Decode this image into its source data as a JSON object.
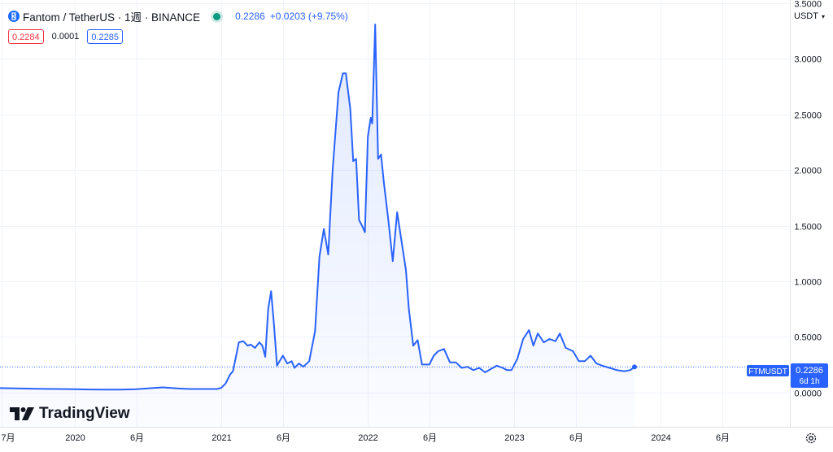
{
  "legend": {
    "symbol_title": "Fantom / TetherUS · 1週 · BINANCE",
    "last_price": "0.2286",
    "change": "+0.0203 (+9.75%)",
    "logo_icon": "fantom-logo-icon",
    "status_color": "#089981"
  },
  "trade": {
    "sell": "0.2284",
    "spread": "0.0001",
    "buy": "0.2285"
  },
  "currency": {
    "label": "USDT",
    "icon": "chevron-down-icon"
  },
  "price_tag": {
    "symbol": "FTMUSDT",
    "price": "0.2286",
    "countdown": "6d 1h"
  },
  "brand": {
    "name": "TradingView"
  },
  "colors": {
    "line": "#2962ff",
    "fill": "#2962ff",
    "grid": "#f0f3fa",
    "text": "#131722",
    "axis_text": "#131722"
  },
  "chart_data": {
    "type": "area",
    "title": "Fantom / TetherUS · 1週 · BINANCE",
    "xlabel": "",
    "ylabel": "",
    "y_ticks": [
      "0.0000",
      "0.5000",
      "1.0000",
      "1.5000",
      "2.0000",
      "2.5000",
      "3.0000",
      "3.5000"
    ],
    "y_tick_values": [
      0,
      0.5,
      1.0,
      1.5,
      2.0,
      2.5,
      3.0,
      3.5
    ],
    "ylim": [
      -0.31,
      3.53
    ],
    "x_ticks": [
      {
        "label": "7月",
        "t": 2019.5
      },
      {
        "label": "2020",
        "t": 2020.0
      },
      {
        "label": "6月",
        "t": 2020.42
      },
      {
        "label": "2021",
        "t": 2021.0
      },
      {
        "label": "6月",
        "t": 2021.42
      },
      {
        "label": "2022",
        "t": 2022.0
      },
      {
        "label": "6月",
        "t": 2022.42
      },
      {
        "label": "2023",
        "t": 2023.0
      },
      {
        "label": "6月",
        "t": 2023.42
      },
      {
        "label": "2024",
        "t": 2024.0
      },
      {
        "label": "6月",
        "t": 2024.42
      }
    ],
    "xlim": [
      2019.49,
      2024.88
    ],
    "grid": true,
    "legend_position": "top-left",
    "current_value": 0.2286,
    "series": [
      {
        "name": "",
        "x": [
          2019.49,
          2019.6,
          2019.7,
          2019.8,
          2019.9,
          2020.0,
          2020.1,
          2020.2,
          2020.3,
          2020.35,
          2020.42,
          2020.5,
          2020.55,
          2020.6,
          2020.65,
          2020.7,
          2020.75,
          2020.8,
          2020.9,
          2020.97,
          2021.0,
          2021.03,
          2021.06,
          2021.08,
          2021.1,
          2021.12,
          2021.15,
          2021.18,
          2021.2,
          2021.23,
          2021.26,
          2021.28,
          2021.3,
          2021.32,
          2021.34,
          2021.36,
          2021.38,
          2021.42,
          2021.45,
          2021.48,
          2021.5,
          2021.53,
          2021.56,
          2021.6,
          2021.64,
          2021.67,
          2021.7,
          2021.73,
          2021.76,
          2021.8,
          2021.83,
          2021.85,
          2021.88,
          2021.9,
          2021.92,
          2021.94,
          2021.96,
          2021.98,
          2022.0,
          2022.02,
          2022.03,
          2022.05,
          2022.07,
          2022.09,
          2022.11,
          2022.14,
          2022.17,
          2022.2,
          2022.23,
          2022.26,
          2022.28,
          2022.31,
          2022.34,
          2022.37,
          2022.4,
          2022.42,
          2022.45,
          2022.48,
          2022.52,
          2022.56,
          2022.6,
          2022.64,
          2022.68,
          2022.72,
          2022.76,
          2022.8,
          2022.84,
          2022.88,
          2022.92,
          2022.95,
          2022.98,
          2023.02,
          2023.06,
          2023.1,
          2023.13,
          2023.16,
          2023.2,
          2023.24,
          2023.28,
          2023.31,
          2023.35,
          2023.4,
          2023.44,
          2023.48,
          2023.52,
          2023.56,
          2023.6,
          2023.65,
          2023.7,
          2023.75,
          2023.79,
          2023.82
        ],
        "values": [
          0.038,
          0.035,
          0.033,
          0.031,
          0.03,
          0.028,
          0.026,
          0.025,
          0.025,
          0.026,
          0.028,
          0.035,
          0.04,
          0.045,
          0.04,
          0.035,
          0.032,
          0.03,
          0.03,
          0.03,
          0.04,
          0.08,
          0.16,
          0.19,
          0.32,
          0.45,
          0.46,
          0.42,
          0.43,
          0.4,
          0.45,
          0.42,
          0.32,
          0.75,
          0.91,
          0.6,
          0.24,
          0.33,
          0.26,
          0.28,
          0.22,
          0.26,
          0.23,
          0.28,
          0.55,
          1.22,
          1.47,
          1.24,
          2.0,
          2.7,
          2.87,
          2.87,
          2.55,
          2.08,
          2.1,
          1.55,
          1.5,
          1.44,
          2.3,
          2.47,
          2.42,
          3.31,
          2.1,
          2.14,
          1.88,
          1.55,
          1.18,
          1.62,
          1.36,
          1.1,
          0.75,
          0.42,
          0.47,
          0.25,
          0.25,
          0.25,
          0.33,
          0.37,
          0.39,
          0.27,
          0.27,
          0.22,
          0.23,
          0.2,
          0.22,
          0.18,
          0.21,
          0.24,
          0.22,
          0.2,
          0.2,
          0.3,
          0.48,
          0.56,
          0.42,
          0.53,
          0.45,
          0.48,
          0.46,
          0.53,
          0.4,
          0.37,
          0.28,
          0.28,
          0.33,
          0.26,
          0.24,
          0.22,
          0.2,
          0.19,
          0.2,
          0.2286
        ]
      }
    ]
  }
}
